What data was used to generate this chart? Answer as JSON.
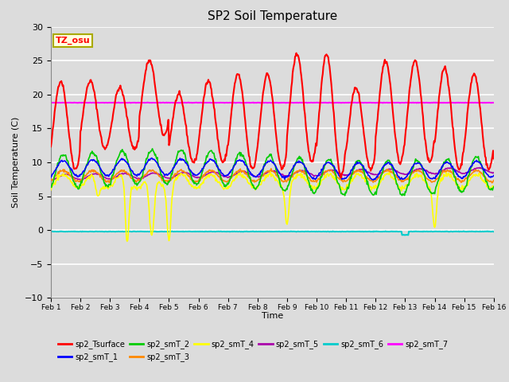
{
  "title": "SP2 Soil Temperature",
  "xlabel": "Time",
  "ylabel": "Soil Temperature (C)",
  "ylim": [
    -10,
    30
  ],
  "xlim": [
    0,
    360
  ],
  "annotation": "TZ_osu",
  "magenta_line_y": 18.8,
  "cyan_line_y": -0.2,
  "series_colors": {
    "sp2_Tsurface": "#FF0000",
    "sp2_smT_1": "#0000FF",
    "sp2_smT_2": "#00CC00",
    "sp2_smT_3": "#FF8800",
    "sp2_smT_4": "#FFFF00",
    "sp2_smT_5": "#AA00AA",
    "sp2_smT_6": "#00CCCC",
    "sp2_smT_7": "#FF00FF"
  },
  "xtick_labels": [
    "Feb 1",
    "Feb 2",
    "Feb 3",
    "Feb 4",
    "Feb 5",
    "Feb 6",
    "Feb 7",
    "Feb 8",
    "Feb 9",
    "Feb 10",
    "Feb 11",
    "Feb 12",
    "Feb 13",
    "Feb 14",
    "Feb 15",
    "Feb 16"
  ],
  "xtick_positions": [
    0,
    24,
    48,
    72,
    96,
    120,
    144,
    168,
    192,
    216,
    240,
    264,
    288,
    312,
    336,
    360
  ],
  "background_color": "#DCDCDC",
  "grid_color": "#FFFFFF",
  "n_points": 721
}
